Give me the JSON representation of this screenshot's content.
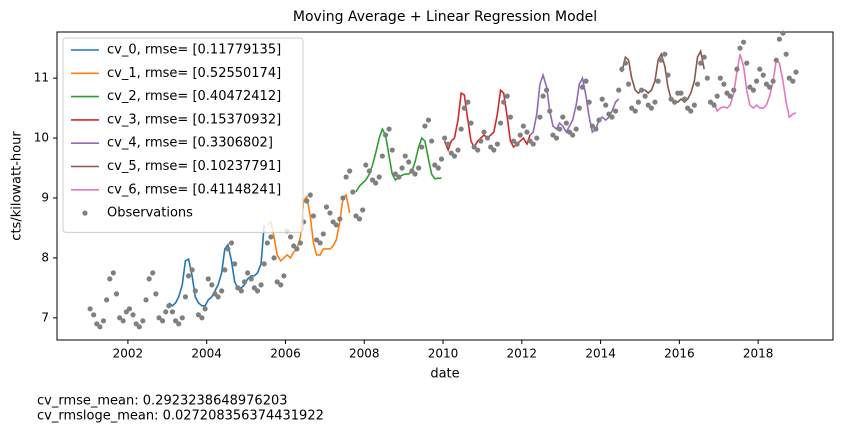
{
  "chart_data": {
    "type": "line",
    "title": "Moving Average + Linear Regression Model",
    "x_label": "date",
    "y_label": "cts/kilowatt-hour",
    "xlim": [
      2000.2,
      2019.9
    ],
    "xticks": [
      2002,
      2004,
      2006,
      2008,
      2010,
      2012,
      2014,
      2016,
      2018
    ],
    "ylim": [
      6.63,
      11.77
    ],
    "yticks": [
      7,
      8,
      9,
      10,
      11
    ],
    "grid": false,
    "legend": "upper left",
    "series": [
      {
        "name": "cv_0, rmse= [0.11779135]",
        "color": "#1f77b4",
        "kind": "line",
        "x": [
          2003.04,
          2003.13,
          2003.21,
          2003.29,
          2003.38,
          2003.46,
          2003.54,
          2003.63,
          2003.71,
          2003.79,
          2003.88,
          2003.96,
          2004.04,
          2004.13,
          2004.21,
          2004.29,
          2004.38,
          2004.46,
          2004.54,
          2004.63,
          2004.71,
          2004.79,
          2004.88,
          2004.96,
          2005.04,
          2005.13,
          2005.21,
          2005.29,
          2005.38,
          2005.46
        ],
        "values": [
          7.25,
          7.2,
          7.25,
          7.35,
          7.55,
          7.95,
          7.98,
          7.7,
          7.35,
          7.25,
          7.2,
          7.2,
          7.3,
          7.35,
          7.45,
          7.55,
          7.75,
          8.15,
          8.22,
          7.95,
          7.6,
          7.5,
          7.5,
          7.55,
          7.65,
          7.7,
          7.7,
          7.75,
          7.9,
          8.55
        ]
      },
      {
        "name": "cv_1, rmse= [0.52550174]",
        "color": "#ff7f0e",
        "kind": "line",
        "x": [
          2005.54,
          2005.63,
          2005.71,
          2005.79,
          2005.88,
          2005.96,
          2006.04,
          2006.13,
          2006.21,
          2006.29,
          2006.38,
          2006.46,
          2006.54,
          2006.63,
          2006.71,
          2006.79,
          2006.88,
          2006.96,
          2007.04,
          2007.13,
          2007.21,
          2007.29,
          2007.38,
          2007.46,
          2007.54,
          2007.63
        ],
        "values": [
          8.55,
          8.6,
          8.35,
          8.05,
          7.95,
          8.0,
          8.05,
          8.0,
          8.1,
          8.15,
          8.35,
          8.95,
          9.02,
          8.7,
          8.25,
          8.05,
          8.05,
          8.15,
          8.15,
          8.15,
          8.2,
          8.3,
          8.6,
          9.0,
          9.05,
          8.75
        ]
      },
      {
        "name": "cv_2, rmse= [0.40472412]",
        "color": "#2ca02c",
        "kind": "line",
        "x": [
          2007.79,
          2007.88,
          2007.96,
          2008.04,
          2008.13,
          2008.21,
          2008.29,
          2008.38,
          2008.46,
          2008.54,
          2008.63,
          2008.71,
          2008.79,
          2008.88,
          2008.96,
          2009.04,
          2009.13,
          2009.21,
          2009.29,
          2009.38,
          2009.46,
          2009.54,
          2009.63,
          2009.71,
          2009.79,
          2009.88,
          2009.96
        ],
        "values": [
          9.1,
          9.2,
          9.25,
          9.3,
          9.4,
          9.55,
          9.75,
          10.0,
          10.15,
          10.05,
          9.7,
          9.4,
          9.3,
          9.35,
          9.38,
          9.4,
          9.4,
          9.45,
          9.6,
          9.85,
          10.0,
          9.95,
          9.65,
          9.4,
          9.32,
          9.33,
          9.33
        ]
      },
      {
        "name": "cv_3, rmse= [0.15370932]",
        "color": "#d62728",
        "kind": "line",
        "x": [
          2010.04,
          2010.13,
          2010.21,
          2010.29,
          2010.38,
          2010.46,
          2010.54,
          2010.63,
          2010.71,
          2010.79,
          2010.88,
          2010.96,
          2011.04,
          2011.13,
          2011.21,
          2011.29,
          2011.38,
          2011.46,
          2011.54,
          2011.63,
          2011.71,
          2011.79,
          2011.88,
          2011.96,
          2012.04,
          2012.13,
          2012.21
        ],
        "values": [
          9.95,
          9.8,
          9.95,
          10.0,
          10.3,
          10.75,
          10.72,
          10.3,
          9.95,
          9.85,
          9.95,
          10.0,
          10.05,
          10.0,
          10.05,
          10.1,
          10.4,
          10.8,
          10.75,
          10.35,
          9.95,
          9.85,
          9.9,
          9.95,
          10.0,
          9.9,
          10.05
        ]
      },
      {
        "name": "cv_4, rmse= [0.3306802]",
        "color": "#9467bd",
        "kind": "line",
        "x": [
          2012.21,
          2012.29,
          2012.38,
          2012.46,
          2012.54,
          2012.63,
          2012.71,
          2012.79,
          2012.88,
          2012.96,
          2013.04,
          2013.13,
          2013.21,
          2013.29,
          2013.38,
          2013.46,
          2013.54,
          2013.63,
          2013.71,
          2013.79,
          2013.88,
          2013.96,
          2014.04,
          2014.13,
          2014.21,
          2014.29,
          2014.38,
          2014.46
        ],
        "values": [
          10.05,
          10.1,
          10.4,
          10.9,
          11.05,
          10.85,
          10.45,
          10.2,
          10.15,
          10.25,
          10.2,
          10.1,
          10.2,
          10.3,
          10.55,
          10.9,
          11.0,
          10.7,
          10.35,
          10.1,
          10.15,
          10.3,
          10.35,
          10.3,
          10.35,
          10.45,
          10.6,
          10.65
        ]
      },
      {
        "name": "cv_5, rmse= [0.10237791]",
        "color": "#8c564b",
        "kind": "line",
        "x": [
          2014.54,
          2014.63,
          2014.71,
          2014.79,
          2014.88,
          2014.96,
          2015.04,
          2015.13,
          2015.21,
          2015.29,
          2015.38,
          2015.46,
          2015.54,
          2015.63,
          2015.71,
          2015.79,
          2015.88,
          2015.96,
          2016.04,
          2016.13,
          2016.21,
          2016.29,
          2016.38,
          2016.46,
          2016.54,
          2016.63
        ],
        "values": [
          11.1,
          11.35,
          11.3,
          11.0,
          10.8,
          10.75,
          10.8,
          10.8,
          10.75,
          10.8,
          10.95,
          11.3,
          11.4,
          11.2,
          10.85,
          10.65,
          10.6,
          10.6,
          10.65,
          10.6,
          10.65,
          10.75,
          10.95,
          11.35,
          11.45,
          11.15
        ]
      },
      {
        "name": "cv_6, rmse= [0.41148241]",
        "color": "#e377c2",
        "kind": "line",
        "x": [
          2016.88,
          2016.96,
          2017.04,
          2017.13,
          2017.21,
          2017.29,
          2017.38,
          2017.46,
          2017.54,
          2017.63,
          2017.71,
          2017.79,
          2017.88,
          2017.96,
          2018.04,
          2018.13,
          2018.21,
          2018.29,
          2018.38,
          2018.46,
          2018.54,
          2018.63,
          2018.71,
          2018.79,
          2018.88,
          2018.96
        ],
        "values": [
          10.6,
          10.45,
          10.5,
          10.52,
          10.5,
          10.55,
          10.75,
          11.1,
          11.4,
          11.2,
          10.8,
          10.55,
          10.5,
          10.55,
          10.5,
          10.5,
          10.55,
          10.7,
          10.95,
          11.3,
          11.25,
          10.95,
          10.6,
          10.35,
          10.4,
          10.42
        ]
      },
      {
        "name": "Observations",
        "color": "#808080",
        "kind": "scatter",
        "x": [
          2001.04,
          2001.13,
          2001.21,
          2001.29,
          2001.38,
          2001.46,
          2001.54,
          2001.63,
          2001.71,
          2001.79,
          2001.88,
          2001.96,
          2002.04,
          2002.13,
          2002.21,
          2002.29,
          2002.38,
          2002.46,
          2002.54,
          2002.63,
          2002.71,
          2002.79,
          2002.88,
          2002.96,
          2003.04,
          2003.13,
          2003.21,
          2003.29,
          2003.38,
          2003.46,
          2003.54,
          2003.63,
          2003.71,
          2003.79,
          2003.88,
          2003.96,
          2004.04,
          2004.13,
          2004.21,
          2004.29,
          2004.38,
          2004.46,
          2004.54,
          2004.63,
          2004.71,
          2004.79,
          2004.88,
          2004.96,
          2005.04,
          2005.13,
          2005.21,
          2005.29,
          2005.38,
          2005.46,
          2005.54,
          2005.63,
          2005.71,
          2005.79,
          2005.88,
          2005.96,
          2006.04,
          2006.13,
          2006.21,
          2006.29,
          2006.38,
          2006.46,
          2006.54,
          2006.63,
          2006.71,
          2006.79,
          2006.88,
          2006.96,
          2007.04,
          2007.13,
          2007.21,
          2007.29,
          2007.38,
          2007.46,
          2007.54,
          2007.63,
          2007.71,
          2007.79,
          2007.88,
          2007.96,
          2008.04,
          2008.13,
          2008.21,
          2008.29,
          2008.38,
          2008.46,
          2008.54,
          2008.63,
          2008.71,
          2008.79,
          2008.88,
          2008.96,
          2009.04,
          2009.13,
          2009.21,
          2009.29,
          2009.38,
          2009.46,
          2009.54,
          2009.63,
          2009.71,
          2009.79,
          2009.88,
          2009.96,
          2010.04,
          2010.13,
          2010.21,
          2010.29,
          2010.38,
          2010.46,
          2010.54,
          2010.63,
          2010.71,
          2010.79,
          2010.88,
          2010.96,
          2011.04,
          2011.13,
          2011.21,
          2011.29,
          2011.38,
          2011.46,
          2011.54,
          2011.63,
          2011.71,
          2011.79,
          2011.88,
          2011.96,
          2012.04,
          2012.13,
          2012.21,
          2012.29,
          2012.38,
          2012.46,
          2012.54,
          2012.63,
          2012.71,
          2012.79,
          2012.88,
          2012.96,
          2013.04,
          2013.13,
          2013.21,
          2013.29,
          2013.38,
          2013.46,
          2013.54,
          2013.63,
          2013.71,
          2013.79,
          2013.88,
          2013.96,
          2014.04,
          2014.13,
          2014.21,
          2014.29,
          2014.38,
          2014.46,
          2014.54,
          2014.63,
          2014.71,
          2014.79,
          2014.88,
          2014.96,
          2015.04,
          2015.13,
          2015.21,
          2015.29,
          2015.38,
          2015.46,
          2015.54,
          2015.63,
          2015.71,
          2015.79,
          2015.88,
          2015.96,
          2016.04,
          2016.13,
          2016.21,
          2016.29,
          2016.38,
          2016.46,
          2016.54,
          2016.63,
          2016.71,
          2016.79,
          2016.88,
          2016.96,
          2017.04,
          2017.13,
          2017.21,
          2017.29,
          2017.38,
          2017.46,
          2017.54,
          2017.63,
          2017.71,
          2017.79,
          2017.88,
          2017.96,
          2018.04,
          2018.13,
          2018.21,
          2018.29,
          2018.38,
          2018.46,
          2018.54,
          2018.63,
          2018.71,
          2018.79,
          2018.88,
          2018.96
        ],
        "values": [
          7.15,
          7.05,
          6.9,
          6.85,
          6.95,
          7.3,
          7.65,
          7.75,
          7.4,
          7.0,
          6.95,
          7.1,
          7.15,
          7.05,
          6.9,
          6.85,
          6.95,
          7.3,
          7.65,
          7.75,
          7.4,
          7.0,
          6.95,
          7.1,
          7.2,
          7.1,
          6.95,
          6.9,
          7.0,
          7.35,
          7.7,
          7.8,
          7.45,
          7.05,
          7.0,
          7.15,
          7.65,
          7.55,
          7.4,
          7.35,
          7.45,
          7.8,
          8.15,
          8.25,
          7.9,
          7.5,
          7.45,
          7.6,
          7.75,
          7.65,
          7.5,
          7.45,
          7.55,
          7.9,
          8.25,
          8.35,
          8.0,
          7.6,
          7.55,
          7.7,
          8.45,
          8.35,
          8.2,
          8.15,
          8.25,
          8.6,
          8.95,
          9.05,
          8.7,
          8.3,
          8.25,
          8.4,
          8.85,
          8.75,
          8.6,
          8.55,
          8.65,
          9.0,
          9.35,
          9.45,
          9.1,
          8.7,
          8.65,
          8.8,
          9.55,
          9.45,
          9.3,
          9.25,
          9.35,
          9.7,
          10.05,
          10.15,
          9.8,
          9.4,
          9.35,
          9.5,
          9.7,
          9.6,
          9.45,
          9.4,
          9.5,
          9.85,
          10.2,
          10.3,
          9.95,
          9.55,
          9.5,
          9.65,
          10.0,
          9.9,
          9.75,
          9.7,
          9.8,
          10.15,
          10.5,
          10.6,
          10.25,
          9.85,
          9.8,
          9.95,
          10.1,
          10.0,
          9.85,
          9.8,
          9.9,
          10.25,
          10.6,
          10.7,
          10.35,
          9.95,
          9.9,
          10.05,
          10.2,
          10.1,
          9.95,
          9.9,
          10.0,
          10.35,
          10.7,
          10.8,
          10.45,
          10.05,
          10.0,
          10.15,
          10.35,
          10.25,
          10.1,
          10.05,
          10.15,
          10.5,
          10.85,
          10.95,
          10.6,
          10.2,
          10.15,
          10.3,
          10.65,
          10.55,
          10.4,
          10.35,
          10.45,
          10.8,
          11.15,
          11.25,
          10.9,
          10.5,
          10.45,
          10.6,
          10.8,
          10.7,
          10.55,
          10.5,
          10.6,
          10.95,
          11.3,
          11.4,
          11.05,
          10.65,
          10.6,
          10.75,
          10.75,
          10.65,
          10.5,
          10.45,
          10.55,
          10.9,
          11.25,
          11.35,
          11.0,
          10.6,
          10.55,
          10.7,
          11.0,
          10.9,
          10.75,
          10.7,
          10.8,
          11.15,
          11.5,
          11.6,
          11.25,
          10.85,
          10.8,
          10.95,
          11.15,
          11.05,
          10.9,
          10.85,
          10.95,
          11.3,
          11.65,
          11.75,
          11.4,
          11.0,
          10.95,
          11.1
        ]
      }
    ],
    "footnotes": [
      "cv_rmse_mean: 0.2923238648976203",
      "cv_rmsloge_mean: 0.027208356374431922"
    ]
  }
}
